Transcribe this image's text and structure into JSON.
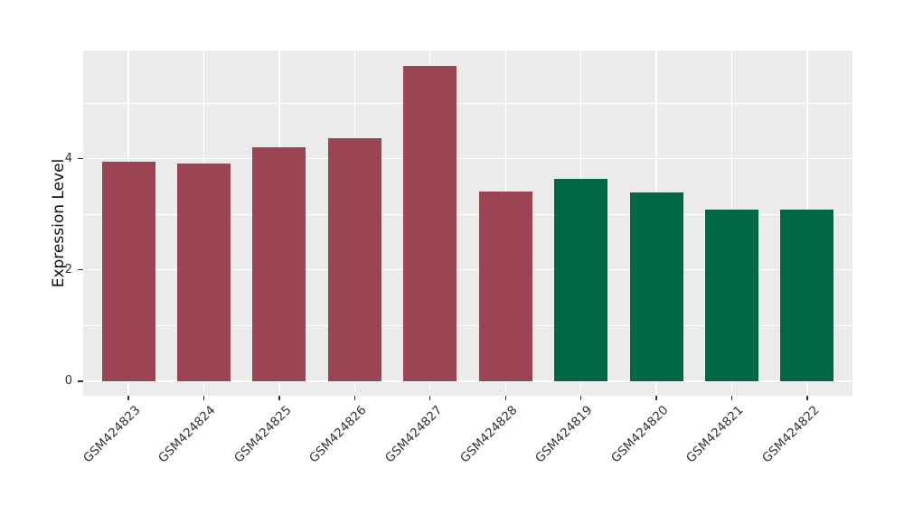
{
  "chart_data": {
    "type": "bar",
    "title": "",
    "xlabel": "",
    "ylabel": "Expression Level",
    "categories": [
      "GSM424823",
      "GSM424824",
      "GSM424825",
      "GSM424826",
      "GSM424827",
      "GSM424828",
      "GSM424819",
      "GSM424820",
      "GSM424821",
      "GSM424822"
    ],
    "values": [
      3.94,
      3.92,
      4.21,
      4.36,
      5.67,
      3.41,
      3.64,
      3.4,
      3.08,
      3.08
    ],
    "bar_colors": [
      "#9C4453",
      "#9C4453",
      "#9C4453",
      "#9C4453",
      "#9C4453",
      "#9C4453",
      "#006847",
      "#006847",
      "#006847",
      "#006847"
    ],
    "group_colors": {
      "left_group": "#9C4453",
      "right_group": "#006847"
    },
    "y_major_ticks": [
      0,
      2,
      4
    ],
    "y_tick_labels": [
      "0",
      "2",
      "4"
    ],
    "y_minor_gridlines": [
      1,
      3,
      5
    ],
    "ylim": [
      -0.28,
      5.95
    ],
    "x_tick_rotation_deg": 45,
    "grid": true,
    "legend_position": "none",
    "panel_background": "#EBEBEB",
    "grid_color": "#FFFFFF",
    "tick_color": "#333333"
  }
}
